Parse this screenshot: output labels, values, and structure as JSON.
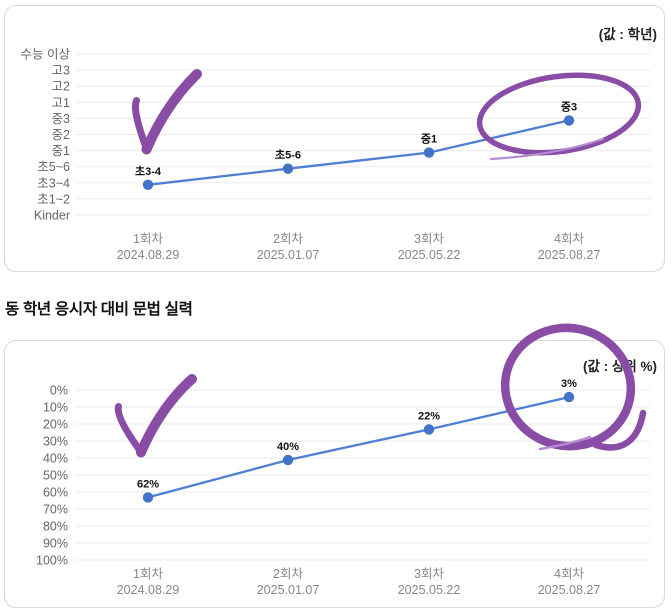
{
  "section_title": "동 학년 응시자 대비 문법 실력",
  "colors": {
    "line": "#4e7fd4",
    "marker": "#4273c8",
    "annotation_purple": "#8a4da6",
    "grid": "#ebebeb",
    "axis_text": "#666666",
    "xaxis_text": "#888888",
    "data_label": "#111111"
  },
  "chart_data": [
    {
      "type": "line",
      "title": "",
      "value_note": "(값 : 학년)",
      "categories": [
        "1회차",
        "2회차",
        "3회차",
        "4회차"
      ],
      "category_dates": [
        "2024.08.29",
        "2025.01.07",
        "2025.05.22",
        "2025.08.27"
      ],
      "y_axis_labels": [
        "수능 이상",
        "고3",
        "고2",
        "고1",
        "중3",
        "중2",
        "중1",
        "초5~6",
        "초3~4",
        "초1~2",
        "Kinder"
      ],
      "values": [
        "초3-4",
        "초5-6",
        "중1",
        "중3"
      ],
      "value_axis_indices": [
        8,
        7,
        6,
        4
      ],
      "grid": true,
      "legend_position": "top-right",
      "annotations": [
        "purple checkmark over 1회차",
        "purple circle around 4회차 value"
      ]
    },
    {
      "type": "line",
      "title": "동 학년 응시자 대비 문법 실력",
      "value_note": "(값 : 상위 %)",
      "categories": [
        "1회차",
        "2회차",
        "3회차",
        "4회차"
      ],
      "category_dates": [
        "2024.08.29",
        "2025.01.07",
        "2025.05.22",
        "2025.08.27"
      ],
      "y_ticks": [
        "0%",
        "10%",
        "20%",
        "30%",
        "40%",
        "50%",
        "60%",
        "70%",
        "80%",
        "90%",
        "100%"
      ],
      "values": [
        62,
        40,
        22,
        3
      ],
      "data_labels": [
        "62%",
        "40%",
        "22%",
        "3%"
      ],
      "ylim": [
        0,
        100
      ],
      "y_axis_inverted": true,
      "grid": true,
      "legend_position": "top-right",
      "annotations": [
        "purple checkmark over 1회차",
        "purple circle around 4회차 value"
      ]
    }
  ]
}
